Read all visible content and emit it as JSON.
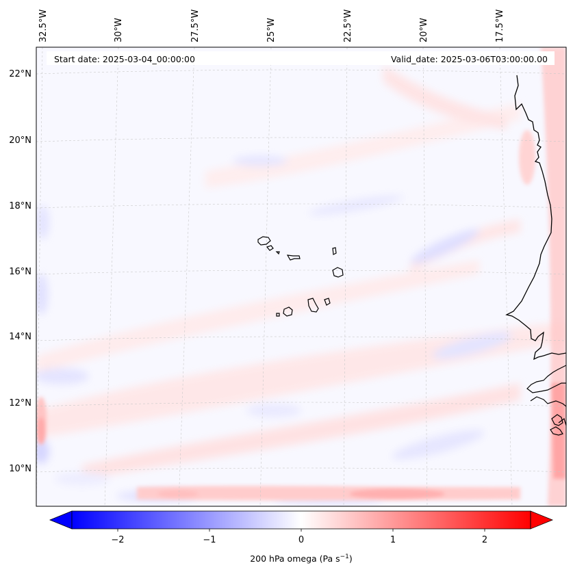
{
  "map": {
    "start_date": "Start date: 2025-03-04_00:00:00",
    "valid_date": "Valid_date: 2025-03-06T03:00:00.00",
    "lon_labels": [
      "32.5°W",
      "30°W",
      "27.5°W",
      "25°W",
      "22.5°W",
      "20°W",
      "17.5°W"
    ],
    "lat_labels": [
      "22°N",
      "20°N",
      "18°N",
      "16°N",
      "14°N",
      "12°N",
      "10°N"
    ],
    "colors": {
      "negative": "#0000ff",
      "neutral": "#ffffff",
      "positive": "#ff0000",
      "coastline": "#000000",
      "gridline": "#bdbdbd"
    }
  },
  "colorbar": {
    "ticks": [
      "−2",
      "−1",
      "0",
      "1",
      "2"
    ],
    "label": "200 hPa omega (Pa s",
    "label_sup": "−1",
    "label_close": ")",
    "range": [
      -2.5,
      2.5
    ]
  }
}
